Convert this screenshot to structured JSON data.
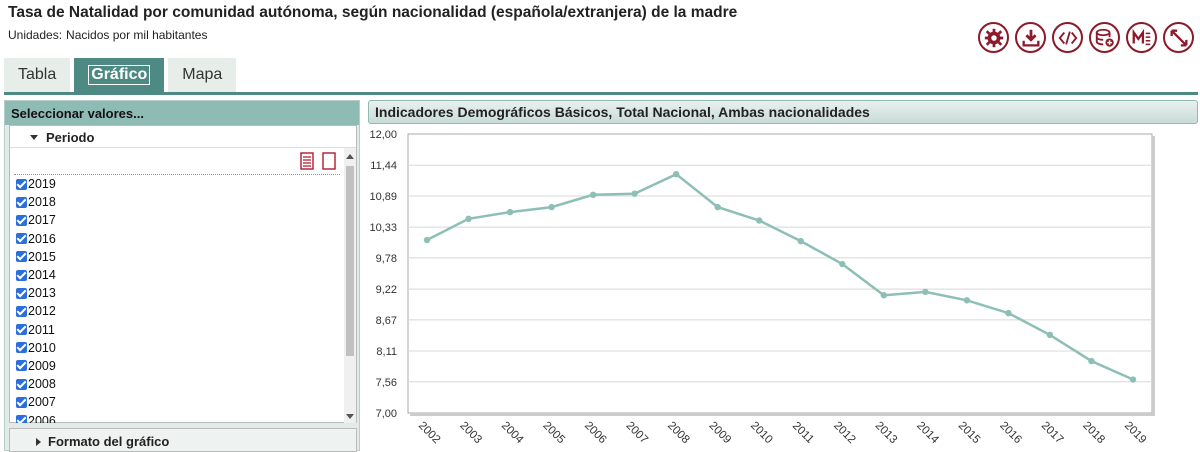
{
  "header": {
    "title": "Tasa de Natalidad por comunidad autónoma, según nacionalidad (española/extranjera) de la madre",
    "units_label": "Unidades:",
    "units_value": "Nacidos por mil habitantes"
  },
  "toolbar": {
    "icons": [
      "gear-icon",
      "download-icon",
      "code-icon",
      "database-add-icon",
      "metadata-icon",
      "expand-icon"
    ],
    "accent": "#8b1a2a"
  },
  "tabs": [
    {
      "label": "Tabla",
      "active": false
    },
    {
      "label": "Gráfico",
      "active": true
    },
    {
      "label": "Mapa",
      "active": false
    }
  ],
  "left_panel": {
    "header": "Seleccionar valores...",
    "periodo_title": "Periodo",
    "years": [
      "2019",
      "2018",
      "2017",
      "2016",
      "2015",
      "2014",
      "2013",
      "2012",
      "2011",
      "2010",
      "2009",
      "2008",
      "2007",
      "2006"
    ],
    "formato_title": "Formato del gráfico"
  },
  "chart_data": {
    "type": "line",
    "title": "Indicadores Demográficos Básicos, Total Nacional, Ambas nacionalidades",
    "x": [
      "2002",
      "2003",
      "2004",
      "2005",
      "2006",
      "2007",
      "2008",
      "2009",
      "2010",
      "2011",
      "2012",
      "2013",
      "2014",
      "2015",
      "2016",
      "2017",
      "2018",
      "2019"
    ],
    "y": [
      10.1,
      10.48,
      10.6,
      10.69,
      10.91,
      10.93,
      11.28,
      10.69,
      10.45,
      10.08,
      9.67,
      9.11,
      9.17,
      9.02,
      8.79,
      8.4,
      7.93,
      7.6
    ],
    "yticks": [
      "12,00",
      "11,44",
      "10,89",
      "10,33",
      "9,78",
      "9,22",
      "8,67",
      "8,11",
      "7,56",
      "7,00"
    ],
    "ylim": [
      7.0,
      12.0
    ],
    "line_color": "#8ebfb6",
    "grid": true
  }
}
